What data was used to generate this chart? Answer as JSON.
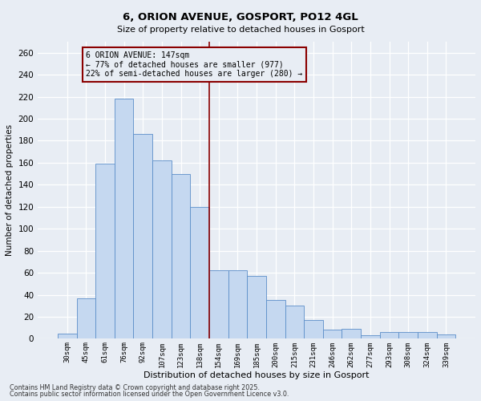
{
  "title1": "6, ORION AVENUE, GOSPORT, PO12 4GL",
  "title2": "Size of property relative to detached houses in Gosport",
  "xlabel": "Distribution of detached houses by size in Gosport",
  "ylabel": "Number of detached properties",
  "categories": [
    "30sqm",
    "45sqm",
    "61sqm",
    "76sqm",
    "92sqm",
    "107sqm",
    "123sqm",
    "138sqm",
    "154sqm",
    "169sqm",
    "185sqm",
    "200sqm",
    "215sqm",
    "231sqm",
    "246sqm",
    "262sqm",
    "277sqm",
    "293sqm",
    "308sqm",
    "324sqm",
    "339sqm"
  ],
  "values": [
    5,
    37,
    159,
    218,
    186,
    162,
    150,
    120,
    62,
    62,
    57,
    35,
    30,
    17,
    8,
    9,
    3,
    6,
    6,
    6,
    4
  ],
  "bar_color": "#c5d8f0",
  "bar_edge_color": "#5b8ec9",
  "bg_color": "#e8edf4",
  "vline_x_idx": 7.5,
  "vline_color": "#8b0000",
  "annotation_text": "6 ORION AVENUE: 147sqm\n← 77% of detached houses are smaller (977)\n22% of semi-detached houses are larger (280) →",
  "annotation_box_color": "#8b0000",
  "footer1": "Contains HM Land Registry data © Crown copyright and database right 2025.",
  "footer2": "Contains public sector information licensed under the Open Government Licence v3.0.",
  "ylim": [
    0,
    270
  ],
  "yticks": [
    0,
    20,
    40,
    60,
    80,
    100,
    120,
    140,
    160,
    180,
    200,
    220,
    240,
    260
  ]
}
